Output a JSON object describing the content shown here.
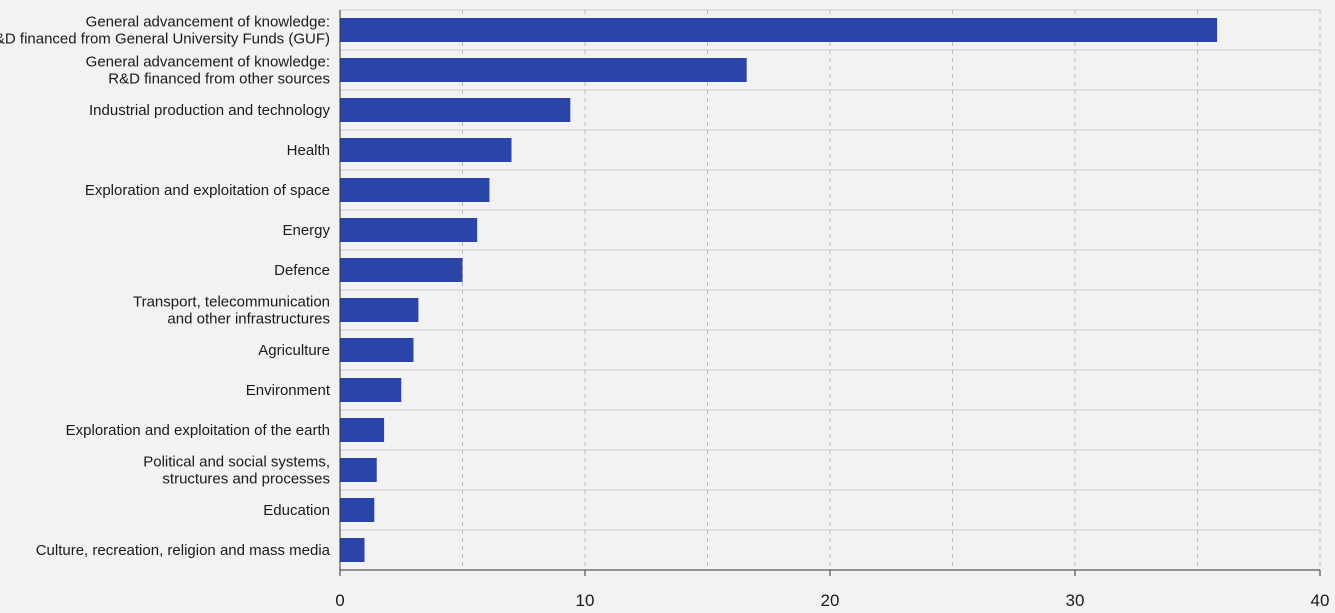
{
  "chart_data": {
    "type": "bar",
    "orientation": "horizontal",
    "title": "",
    "xlabel": "",
    "ylabel": "",
    "xlim": [
      0,
      40
    ],
    "x_ticks": [
      0,
      10,
      20,
      30,
      40
    ],
    "grid": true,
    "bar_color": "#2a44a7",
    "categories": [
      [
        "General advancement of knowledge:",
        "R&D financed from General University Funds (GUF)"
      ],
      [
        "General advancement of knowledge:",
        "R&D financed from other sources"
      ],
      [
        "Industrial production and technology"
      ],
      [
        "Health"
      ],
      [
        "Exploration and exploitation of space"
      ],
      [
        "Energy"
      ],
      [
        "Defence"
      ],
      [
        "Transport, telecommunication",
        "and other infrastructures"
      ],
      [
        "Agriculture"
      ],
      [
        "Environment"
      ],
      [
        "Exploration and exploitation of the earth"
      ],
      [
        "Political and social systems,",
        "structures and processes"
      ],
      [
        "Education"
      ],
      [
        "Culture, recreation, religion and mass media"
      ]
    ],
    "values": [
      35.8,
      16.6,
      9.4,
      7.0,
      6.1,
      5.6,
      5.0,
      3.2,
      3.0,
      2.5,
      1.8,
      1.5,
      1.4,
      1.0
    ]
  }
}
